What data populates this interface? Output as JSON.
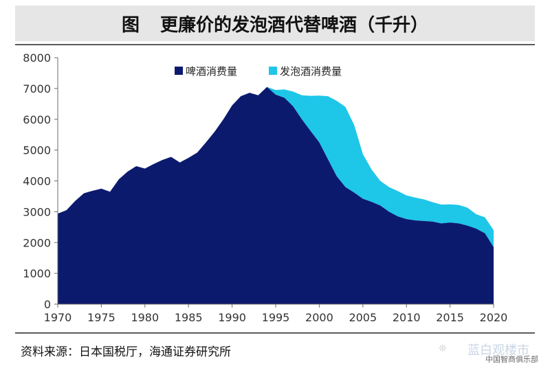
{
  "header": {
    "prefix": "图",
    "title": "更廉价的发泡酒代替啤酒（千升）"
  },
  "footer": {
    "source": "资料来源：日本国税厅，海通证券研究所"
  },
  "watermark": {
    "main": "蓝白观楼市",
    "sub": "中国智商俱乐部",
    "icon": "wechat-icon"
  },
  "colors": {
    "beer": "#0c1a6e",
    "happoshu": "#1ec6e8",
    "axis": "#6a6a6a"
  },
  "chart_data": {
    "type": "area",
    "stacked": true,
    "title": "更廉价的发泡酒代替啤酒（千升）",
    "xlabel": "",
    "ylabel": "",
    "xlim": [
      1970,
      2020
    ],
    "ylim": [
      0,
      8000
    ],
    "x_ticks": [
      1970,
      1975,
      1980,
      1985,
      1990,
      1995,
      2000,
      2005,
      2010,
      2015,
      2020
    ],
    "y_ticks": [
      0,
      1000,
      2000,
      3000,
      4000,
      5000,
      6000,
      7000,
      8000
    ],
    "grid": false,
    "legend_position": "top-center",
    "x": [
      1970,
      1971,
      1972,
      1973,
      1974,
      1975,
      1976,
      1977,
      1978,
      1979,
      1980,
      1981,
      1982,
      1983,
      1984,
      1985,
      1986,
      1987,
      1988,
      1989,
      1990,
      1991,
      1992,
      1993,
      1994,
      1995,
      1996,
      1997,
      1998,
      1999,
      2000,
      2001,
      2002,
      2003,
      2004,
      2005,
      2006,
      2007,
      2008,
      2009,
      2010,
      2011,
      2012,
      2013,
      2014,
      2015,
      2016,
      2017,
      2018,
      2019,
      2020
    ],
    "series": [
      {
        "name": "啤酒消费量",
        "values": [
          2940,
          3050,
          3350,
          3600,
          3680,
          3750,
          3650,
          4050,
          4300,
          4480,
          4400,
          4550,
          4680,
          4780,
          4600,
          4750,
          4920,
          5250,
          5600,
          6000,
          6450,
          6750,
          6860,
          6780,
          7050,
          6800,
          6700,
          6420,
          6000,
          5620,
          5250,
          4700,
          4150,
          3800,
          3620,
          3420,
          3320,
          3200,
          3000,
          2850,
          2760,
          2720,
          2700,
          2680,
          2620,
          2650,
          2620,
          2550,
          2450,
          2300,
          1850
        ]
      },
      {
        "name": "发泡酒消费量",
        "values": [
          0,
          0,
          0,
          0,
          0,
          0,
          0,
          0,
          0,
          0,
          0,
          0,
          0,
          0,
          0,
          0,
          0,
          0,
          0,
          0,
          0,
          0,
          0,
          0,
          0,
          150,
          270,
          480,
          780,
          1140,
          1520,
          2050,
          2450,
          2600,
          2200,
          1450,
          1050,
          800,
          800,
          820,
          770,
          740,
          700,
          630,
          610,
          590,
          600,
          580,
          470,
          520,
          550
        ]
      }
    ]
  }
}
